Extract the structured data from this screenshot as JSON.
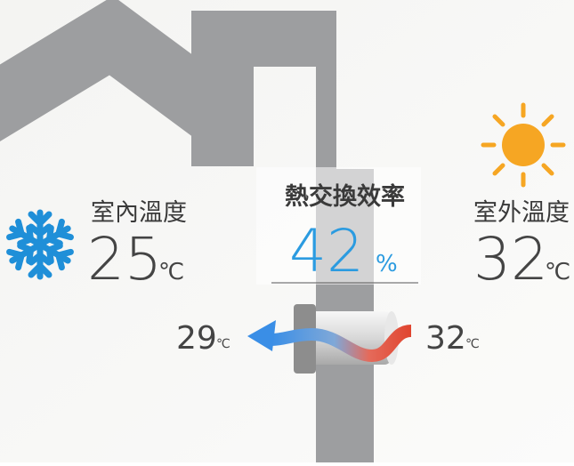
{
  "indoor": {
    "label": "室內溫度",
    "value": 25,
    "unit": "℃"
  },
  "efficiency": {
    "label": "熱交換效率",
    "value": 42,
    "unit": "%"
  },
  "outdoor": {
    "label": "室外溫度",
    "value": 32,
    "unit": "℃"
  },
  "airflow": {
    "exhaust": {
      "value": 29,
      "unit": "℃"
    },
    "intake": {
      "value": 32,
      "unit": "℃"
    }
  }
}
